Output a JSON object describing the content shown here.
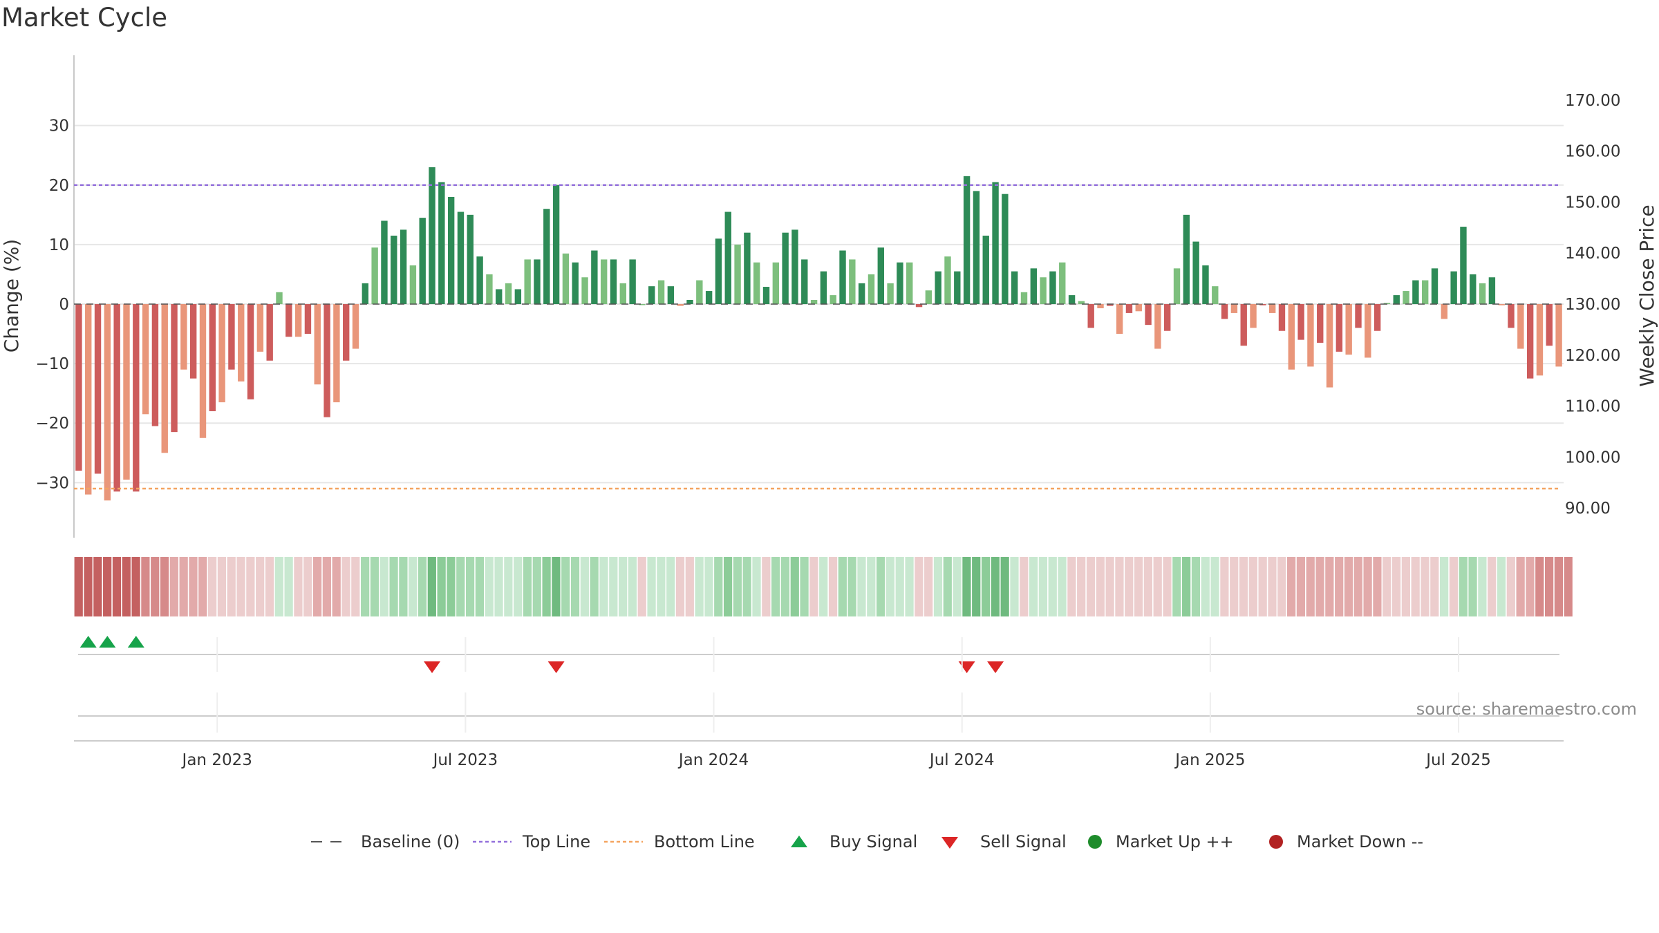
{
  "chart_data": {
    "type": "bar",
    "title": "Market Cycle",
    "ylabel_left": "Change (%)",
    "ylabel_right": "Weekly Close Price",
    "ylim_left": [
      -36,
      36
    ],
    "ylim_right": [
      88,
      172
    ],
    "left_ticks": [
      "30",
      "20",
      "10",
      "0",
      "−10",
      "−20",
      "−30"
    ],
    "left_tick_values": [
      30,
      20,
      10,
      0,
      -10,
      -20,
      -30
    ],
    "right_ticks": [
      "170.00",
      "160.00",
      "150.00",
      "140.00",
      "130.00",
      "120.00",
      "110.00",
      "100.00",
      "90.00"
    ],
    "right_tick_values": [
      170,
      160,
      150,
      140,
      130,
      120,
      110,
      100,
      90
    ],
    "x_labels": [
      {
        "label": "Jan 2023",
        "week": 15
      },
      {
        "label": "Jul 2023",
        "week": 41
      },
      {
        "label": "Jan 2024",
        "week": 67
      },
      {
        "label": "Jul 2024",
        "week": 93
      },
      {
        "label": "Jan 2025",
        "week": 119
      },
      {
        "label": "Jul 2025",
        "week": 145
      }
    ],
    "top_line": 20,
    "bottom_line": -31,
    "values": [
      -28,
      -32,
      -28.5,
      -33,
      -31.5,
      -29.5,
      -31.5,
      -18.5,
      -20.5,
      -25,
      -21.5,
      -11,
      -12.5,
      -22.5,
      -18,
      -16.5,
      -11,
      -13,
      -16,
      -8,
      -9.5,
      2,
      -5.5,
      -5.5,
      -5,
      -13.5,
      -19,
      -16.5,
      -9.5,
      -7.5,
      3.5,
      9.5,
      14,
      11.5,
      12.5,
      6.5,
      14.5,
      23,
      20.5,
      18,
      15.5,
      15,
      8,
      5,
      2.5,
      3.5,
      2.5,
      7.5,
      7.5,
      16,
      20,
      8.5,
      7,
      4.5,
      9,
      7.5,
      7.5,
      3.5,
      7.5,
      0,
      3,
      4,
      3,
      -0.3,
      0.7,
      4,
      2.2,
      11,
      15.5,
      10,
      12,
      7,
      2.9,
      7,
      12,
      12.5,
      7.5,
      0.7,
      5.5,
      1.5,
      9,
      7.5,
      3.5,
      5,
      9.5,
      3.5,
      7,
      7,
      -0.5,
      2.3,
      5.5,
      8,
      5.5,
      21.5,
      19,
      11.5,
      20.5,
      18.5,
      5.5,
      2,
      6,
      4.5,
      5.5,
      7,
      1.5,
      0.5,
      -4,
      -0.7,
      -0.3,
      -5,
      -1.5,
      -1.2,
      -3.5,
      -7.5,
      -4.5,
      6,
      15,
      10.5,
      6.5,
      3,
      -2.5,
      -1.5,
      -7,
      -4,
      -0.2,
      -1.5,
      -4.5,
      -11,
      -6,
      -10.5,
      -6.5,
      -14,
      -8,
      -8.5,
      -4,
      -9,
      -4.5,
      0.2,
      1.5,
      2.2,
      4,
      4,
      6,
      -2.5,
      5.5,
      13,
      5,
      3.5,
      4.5,
      -0.2,
      -4,
      -7.5,
      -12.5,
      -12,
      -7,
      -10.5
    ],
    "strip_levels": [
      1,
      1,
      1,
      1,
      1,
      1,
      1,
      2,
      2,
      2,
      3,
      3,
      3,
      3,
      4,
      4,
      4,
      4,
      4,
      4,
      4,
      5,
      5,
      4,
      4,
      3,
      3,
      3,
      4,
      4,
      6,
      6,
      5,
      6,
      6,
      5,
      6,
      8,
      7,
      7,
      6,
      6,
      6,
      5,
      5,
      5,
      5,
      6,
      6,
      7,
      8,
      6,
      6,
      5,
      6,
      5,
      5,
      5,
      5,
      4,
      5,
      5,
      5,
      4,
      4,
      5,
      5,
      6,
      7,
      6,
      6,
      5,
      4,
      6,
      6,
      7,
      6,
      4,
      5,
      4,
      6,
      6,
      5,
      5,
      6,
      5,
      5,
      5,
      4,
      4,
      5,
      6,
      5,
      8,
      8,
      7,
      8,
      8,
      5,
      4,
      5,
      5,
      5,
      5,
      4,
      4,
      4,
      4,
      4,
      4,
      4,
      4,
      4,
      4,
      4,
      6,
      7,
      6,
      5,
      5,
      4,
      4,
      4,
      4,
      4,
      4,
      4,
      3,
      3,
      3,
      3,
      3,
      3,
      3,
      3,
      3,
      3,
      4,
      4,
      4,
      4,
      4,
      4,
      5,
      4,
      6,
      6,
      5,
      4,
      5,
      4,
      3,
      3,
      2,
      2,
      2,
      2
    ],
    "buy_signals": [
      1,
      3,
      6
    ],
    "sell_signals": [
      37,
      50,
      93,
      96
    ],
    "colors": {
      "up_strong": "#2e8b57",
      "up_light": "#7dbf7d",
      "down_strong": "#cd5c5c",
      "down_light": "#e9967a",
      "top_line": "#9370db",
      "bottom_line": "#f4a460",
      "buy": "#16a34a",
      "sell": "#dc2626",
      "market_up": "#1e8c2b",
      "market_down": "#b22222"
    },
    "legend": [
      {
        "label": "Baseline (0)",
        "icon": "dash-line"
      },
      {
        "label": "Top Line",
        "icon": "dotted-purple-line"
      },
      {
        "label": "Bottom Line",
        "icon": "dotted-orange-line"
      },
      {
        "label": "Buy Signal",
        "icon": "triangle-up"
      },
      {
        "label": "Sell Signal",
        "icon": "triangle-down"
      },
      {
        "label": "Market Up ++",
        "icon": "circle-green"
      },
      {
        "label": "Market Down --",
        "icon": "circle-red"
      }
    ],
    "source": "source: sharemaestro.com"
  }
}
